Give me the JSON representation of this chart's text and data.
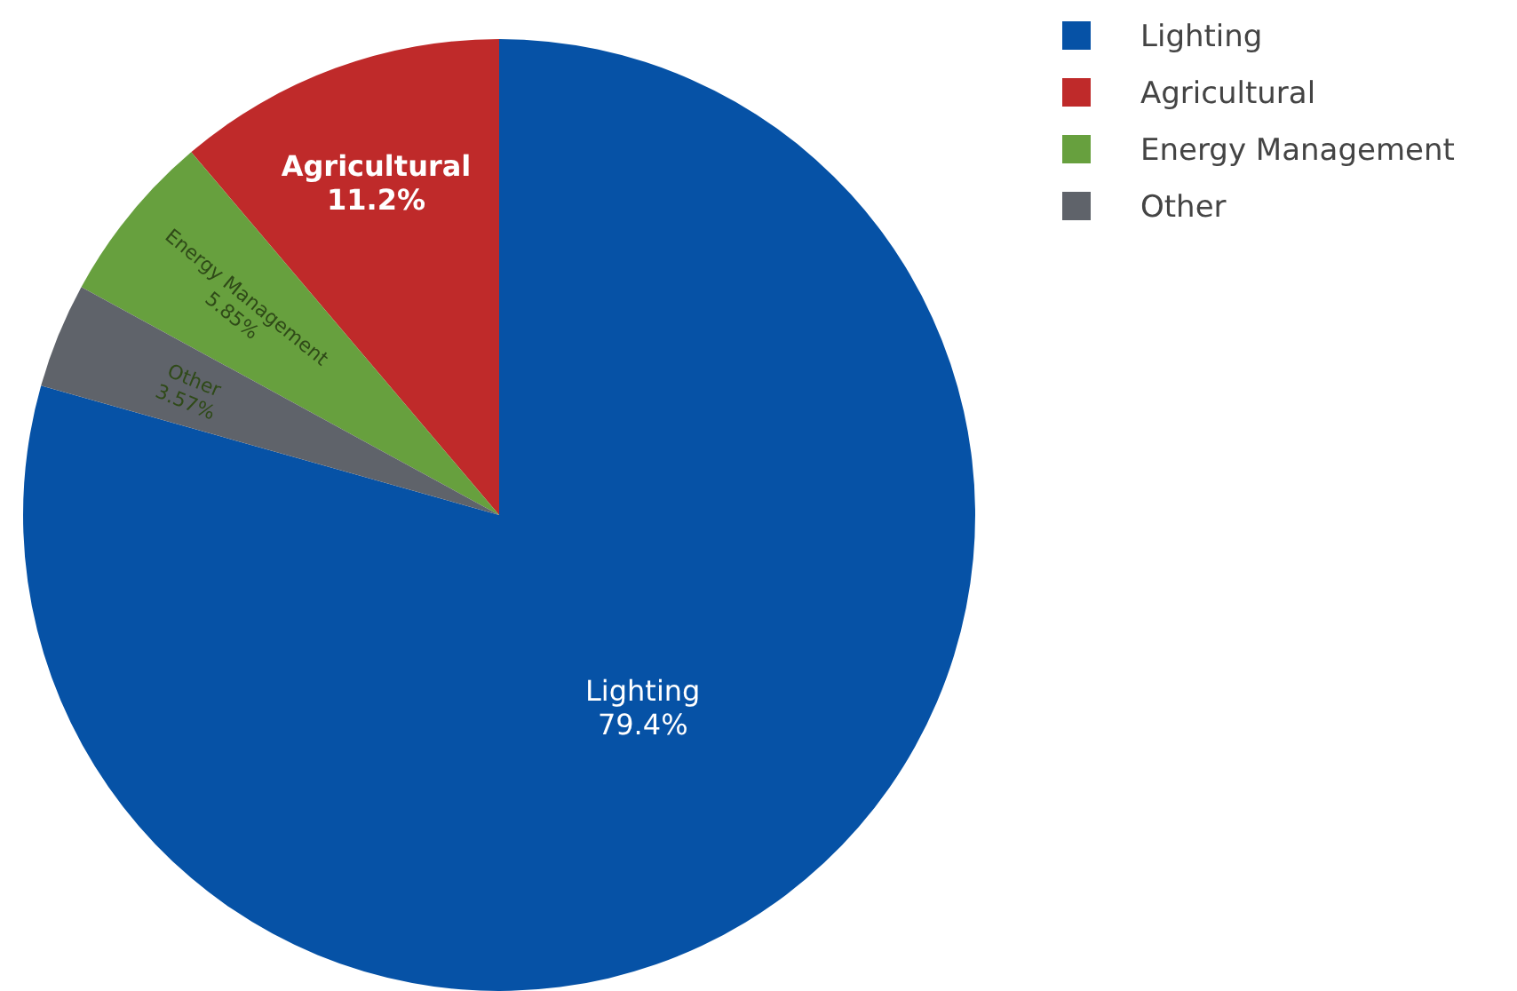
{
  "chart_data": {
    "type": "pie",
    "categories": [
      "Lighting",
      "Agricultural",
      "Energy Management",
      "Other"
    ],
    "values": [
      79.4,
      11.2,
      5.85,
      3.57
    ],
    "colors": [
      "#0652a6",
      "#bf2a2a",
      "#67a03e",
      "#5f636a"
    ],
    "value_labels": [
      "79.4%",
      "11.2%",
      "5.85%",
      "3.57%"
    ],
    "legend": "top right"
  }
}
